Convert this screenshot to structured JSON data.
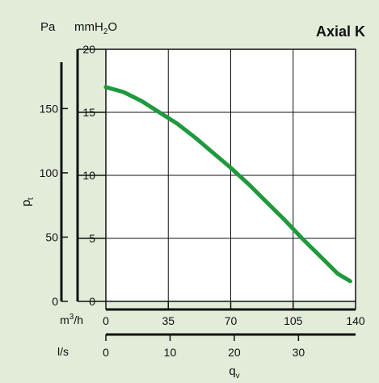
{
  "chart_data": {
    "type": "line",
    "title": "Axial K",
    "pressure_units": [
      "Pa",
      "mmH",
      "2",
      "O"
    ],
    "ylabel": [
      "p",
      "t"
    ],
    "xlabel": [
      "q",
      "v"
    ],
    "flow_unit_rows": [
      {
        "unit": [
          "m",
          "3",
          "/h"
        ],
        "ticks": [
          0,
          35,
          70,
          105,
          140
        ],
        "range": [
          0,
          140
        ]
      },
      {
        "unit": [
          "l/s"
        ],
        "ticks": [
          0,
          10,
          20,
          30
        ],
        "range": [
          0,
          38.89
        ]
      }
    ],
    "y_axes": [
      {
        "unit": "Pa",
        "ticks": [
          0,
          50,
          100,
          150
        ],
        "range": [
          0,
          196.13
        ]
      },
      {
        "unit": "mmH2O",
        "ticks": [
          0,
          5,
          10,
          15,
          20
        ],
        "range": [
          0,
          20
        ]
      }
    ],
    "grid": true,
    "colors": {
      "curve": "#1e9a3c",
      "background": "#e3ecd9",
      "plot": "#ffffff"
    },
    "series": [
      {
        "x": [
          0,
          10,
          20,
          30,
          40,
          50,
          60,
          70,
          80,
          90,
          100,
          110,
          120,
          130,
          137
        ],
        "y": [
          17.0,
          16.6,
          15.9,
          15.0,
          14.1,
          13.0,
          11.8,
          10.6,
          9.3,
          7.9,
          6.5,
          5.0,
          3.6,
          2.2,
          1.6
        ]
      }
    ]
  }
}
